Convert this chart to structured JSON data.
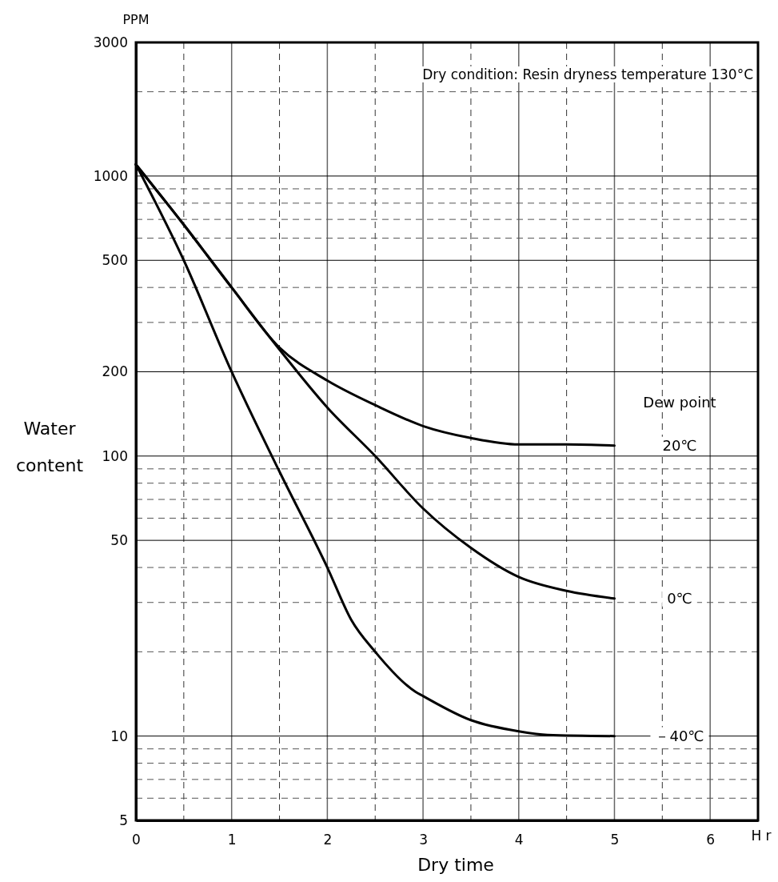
{
  "chart_data": {
    "type": "line",
    "xlabel": "Dry time",
    "ylabel": "Water content",
    "legend_title": "Dew point",
    "log": "y",
    "grid": true,
    "annotations": [
      "PPM",
      "H r",
      "Dry condition: Resin dryness temperature 130°C"
    ],
    "xlim": [
      0,
      6.5
    ],
    "xticks": [
      0,
      {
        "value": 0.5,
        "label": null
      },
      1,
      {
        "value": 1.5,
        "label": null
      },
      2,
      {
        "value": 2.5,
        "label": null
      },
      3,
      {
        "value": 3.5,
        "label": null
      },
      4,
      {
        "value": 4.5,
        "label": null
      },
      5,
      {
        "value": 5.5,
        "label": null
      },
      6
    ],
    "ylim": [
      5,
      3000
    ],
    "yticks": [
      5,
      {
        "value": 6,
        "label": null
      },
      {
        "value": 7,
        "label": null
      },
      {
        "value": 8,
        "label": null
      },
      {
        "value": 9,
        "label": null
      },
      10,
      {
        "value": 20,
        "label": null
      },
      {
        "value": 30,
        "label": null
      },
      {
        "value": 40,
        "label": null
      },
      50,
      {
        "value": 60,
        "label": null
      },
      {
        "value": 70,
        "label": null
      },
      {
        "value": 80,
        "label": null
      },
      {
        "value": 90,
        "label": null
      },
      100,
      200,
      {
        "value": 300,
        "label": null
      },
      {
        "value": 400,
        "label": null
      },
      500,
      {
        "value": 600,
        "label": null
      },
      {
        "value": 700,
        "label": null
      },
      {
        "value": 800,
        "label": null
      },
      {
        "value": 900,
        "label": null
      },
      1000,
      {
        "value": 2000,
        "label": null
      },
      3000
    ],
    "series": [
      {
        "name": "20℃",
        "color": "#000000",
        "x": [
          0,
          0.5,
          1,
          1.5,
          2,
          2.5,
          3,
          3.5,
          4,
          4.5,
          5
        ],
        "values": [
          1100,
          670,
          400,
          244,
          186,
          152,
          128,
          116,
          110,
          110,
          109
        ]
      },
      {
        "name": "0℃",
        "color": "#000000",
        "x": [
          0,
          0.5,
          1,
          1.5,
          2,
          2.5,
          3,
          3.5,
          4,
          4.5,
          5
        ],
        "values": [
          1100,
          670,
          400,
          240,
          149,
          100,
          65,
          47,
          37,
          33,
          31
        ]
      },
      {
        "name": "－40℃",
        "color": "#000000",
        "x": [
          0,
          0.5,
          1,
          1.5,
          2,
          2.25,
          2.5,
          2.92,
          3,
          3.5,
          4,
          4.3,
          5
        ],
        "values": [
          1100,
          500,
          200,
          88,
          40,
          26,
          20,
          14.4,
          13.9,
          11.4,
          10.4,
          10.1,
          10
        ]
      }
    ]
  }
}
